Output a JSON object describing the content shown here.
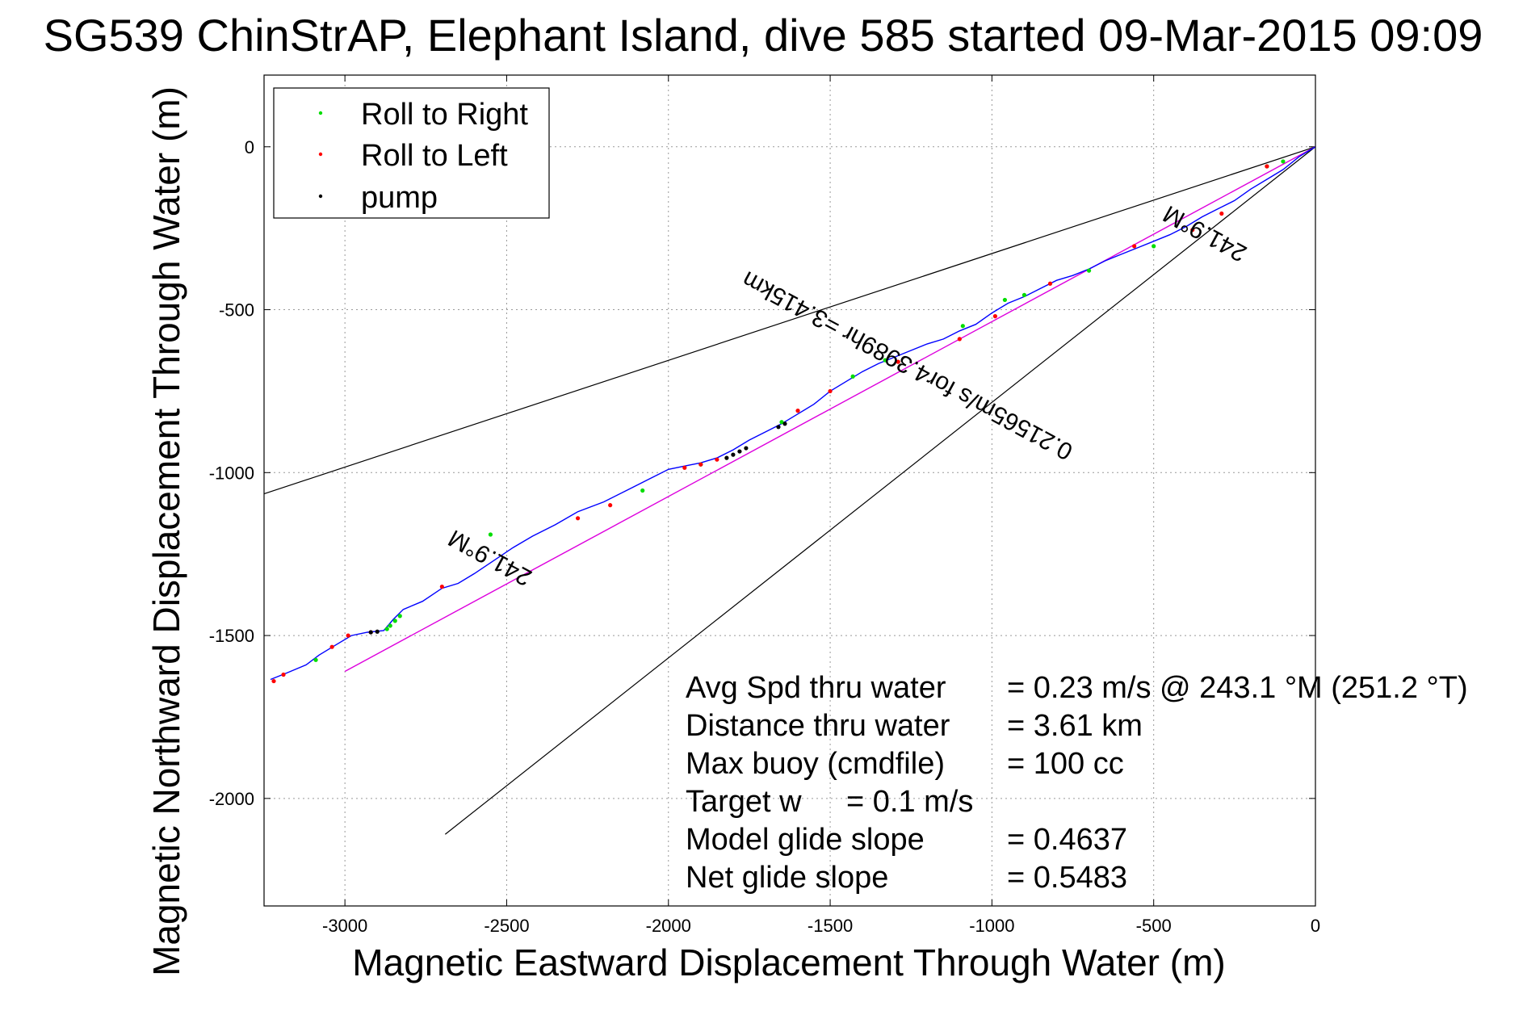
{
  "chart_data": {
    "type": "line",
    "title": "SG539 ChinStrAP, Elephant Island, dive 585 started 09-Mar-2015 09:09",
    "xlabel": "Magnetic Eastward Displacement Through Water (m)",
    "ylabel": "Magnetic Northward Displacement Through Water (m)",
    "xlim": [
      -3250,
      0
    ],
    "ylim": [
      -2330,
      220
    ],
    "x_ticks": [
      -3000,
      -2500,
      -2000,
      -1500,
      -1000,
      -500,
      0
    ],
    "y_ticks": [
      0,
      -500,
      -1000,
      -1500,
      -2000
    ],
    "x_tick_labels": [
      "-3000",
      "-2500",
      "-2000",
      "-1500",
      "-1000",
      "-500",
      "0"
    ],
    "y_tick_labels": [
      "0",
      "-500",
      "-1000",
      "-1500",
      "-2000"
    ],
    "grid": true,
    "legend_position": "top-left",
    "legend": [
      {
        "label": "Roll to Right",
        "color": "#00dd00"
      },
      {
        "label": "Roll to Left",
        "color": "#ff0000"
      },
      {
        "label": "pump",
        "color": "#000000"
      }
    ],
    "track": {
      "color": "#0000ff",
      "x": [
        -3230,
        -3180,
        -3120,
        -3080,
        -3030,
        -2980,
        -2930,
        -2880,
        -2850,
        -2820,
        -2760,
        -2700,
        -2650,
        -2600,
        -2540,
        -2480,
        -2420,
        -2350,
        -2280,
        -2200,
        -2120,
        -2060,
        -2000,
        -1950,
        -1900,
        -1850,
        -1800,
        -1750,
        -1700,
        -1650,
        -1600,
        -1550,
        -1500,
        -1450,
        -1400,
        -1350,
        -1300,
        -1250,
        -1200,
        -1150,
        -1100,
        -1050,
        -1000,
        -950,
        -900,
        -850,
        -800,
        -750,
        -700,
        -650,
        -600,
        -550,
        -500,
        -450,
        -400,
        -350,
        -300,
        -250,
        -200,
        -150,
        -100,
        -50,
        0
      ],
      "y": [
        -1635,
        -1615,
        -1590,
        -1560,
        -1530,
        -1500,
        -1490,
        -1485,
        -1450,
        -1420,
        -1395,
        -1355,
        -1340,
        -1310,
        -1270,
        -1230,
        -1195,
        -1160,
        -1120,
        -1090,
        -1050,
        -1020,
        -990,
        -980,
        -970,
        -955,
        -930,
        -900,
        -875,
        -850,
        -820,
        -790,
        -750,
        -720,
        -690,
        -665,
        -645,
        -625,
        -605,
        -590,
        -565,
        -545,
        -510,
        -480,
        -460,
        -435,
        -410,
        -395,
        -375,
        -350,
        -330,
        -310,
        -290,
        -270,
        -245,
        -215,
        -190,
        -165,
        -130,
        -100,
        -70,
        -30,
        0
      ]
    },
    "model_line": {
      "color": "#dd00dd",
      "x": [
        -3000,
        0
      ],
      "y": [
        -1610,
        0
      ]
    },
    "envelope_lines": [
      {
        "color": "#000000",
        "x": [
          -3250,
          0
        ],
        "y": [
          -1065,
          0
        ]
      },
      {
        "color": "#000000",
        "x": [
          -2690,
          0
        ],
        "y": [
          -2110,
          0
        ]
      }
    ],
    "roll_right_points": {
      "x": [
        -3090,
        -2870,
        -2860,
        -2845,
        -2830,
        -2550,
        -2080,
        -1900,
        -1650,
        -1430,
        -1330,
        -1090,
        -960,
        -900,
        -700,
        -500,
        -150,
        -100
      ],
      "y": [
        -1575,
        -1480,
        -1470,
        -1455,
        -1440,
        -1190,
        -1055,
        -975,
        -845,
        -705,
        -655,
        -550,
        -470,
        -455,
        -380,
        -305,
        -60,
        -45
      ]
    },
    "roll_left_points": {
      "x": [
        -3220,
        -3190,
        -3040,
        -2990,
        -2920,
        -2700,
        -2280,
        -2180,
        -1950,
        -1900,
        -1850,
        -1600,
        -1500,
        -1290,
        -1100,
        -990,
        -820,
        -560,
        -380,
        -290,
        -150
      ],
      "y": [
        -1640,
        -1620,
        -1535,
        -1500,
        -1490,
        -1350,
        -1140,
        -1100,
        -985,
        -975,
        -960,
        -810,
        -750,
        -660,
        -590,
        -520,
        -420,
        -305,
        -255,
        -205,
        -60
      ]
    },
    "pump_points": {
      "x": [
        -2920,
        -2900,
        -1820,
        -1800,
        -1780,
        -1760,
        -1660,
        -1640
      ],
      "y": [
        -1490,
        -1488,
        -955,
        -945,
        -935,
        -925,
        -860,
        -850
      ]
    },
    "annotations": [
      {
        "text": "241.9°M",
        "x": -2540,
        "y": -1240,
        "angle": 208.6
      },
      {
        "text": "241.9°M",
        "x": -330,
        "y": -245,
        "angle": 208.6
      },
      {
        "text": "0.21565m/s for4.3989hr =3.415km",
        "x": -1250,
        "y": -650,
        "angle": 208.3
      }
    ],
    "stats": [
      {
        "label": "Avg Spd thru water",
        "value": "=  0.23 m/s @ 243.1 °M (251.2 °T)"
      },
      {
        "label": "Distance thru water",
        "value": "=  3.61 km"
      },
      {
        "label": "Max buoy (cmdfile)",
        "value": "= 100 cc"
      },
      {
        "label": "Target w",
        "value": "= 0.1 m/s"
      },
      {
        "label": "Model glide slope",
        "value": "= 0.4637"
      },
      {
        "label": "Net glide slope",
        "value": "= 0.5483"
      }
    ]
  }
}
